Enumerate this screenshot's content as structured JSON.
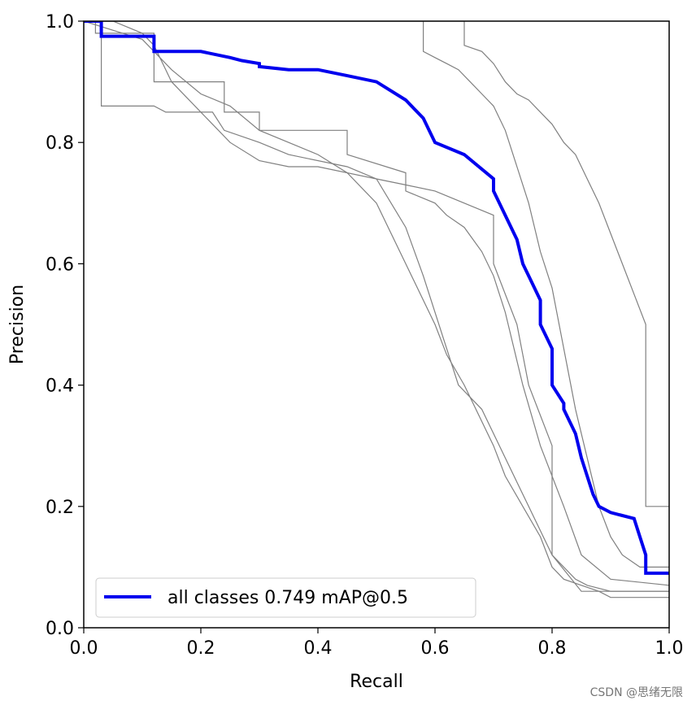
{
  "chart_data": {
    "type": "line",
    "xlabel": "Recall",
    "ylabel": "Precision",
    "xlim": [
      0.0,
      1.0
    ],
    "ylim": [
      0.0,
      1.0
    ],
    "x_ticks": [
      "0.0",
      "0.2",
      "0.4",
      "0.6",
      "0.8",
      "1.0"
    ],
    "y_ticks": [
      "0.0",
      "0.2",
      "0.4",
      "0.6",
      "0.8",
      "1.0"
    ],
    "grid": false,
    "legend_position": "bottom-left",
    "series": [
      {
        "name": "",
        "color": "#808080",
        "x": [
          0.0,
          0.02,
          0.02,
          0.12,
          0.12,
          0.24,
          0.24,
          0.3,
          0.3,
          0.45,
          0.45,
          0.55,
          0.55,
          0.6,
          0.62,
          0.65,
          0.68,
          0.7,
          0.72,
          0.75,
          0.78,
          0.82,
          0.85,
          0.9,
          1.0
        ],
        "y": [
          1.0,
          1.0,
          0.98,
          0.98,
          0.9,
          0.9,
          0.85,
          0.85,
          0.82,
          0.82,
          0.78,
          0.75,
          0.72,
          0.7,
          0.68,
          0.66,
          0.62,
          0.58,
          0.52,
          0.4,
          0.3,
          0.2,
          0.12,
          0.08,
          0.07
        ]
      },
      {
        "name": "",
        "color": "#808080",
        "x": [
          0.0,
          0.03,
          0.03,
          0.12,
          0.14,
          0.22,
          0.24,
          0.3,
          0.35,
          0.45,
          0.5,
          0.55,
          0.6,
          0.65,
          0.7,
          0.7,
          0.74,
          0.76,
          0.8,
          0.8,
          0.85,
          1.0
        ],
        "y": [
          1.0,
          1.0,
          0.86,
          0.86,
          0.85,
          0.85,
          0.82,
          0.8,
          0.78,
          0.76,
          0.74,
          0.73,
          0.72,
          0.7,
          0.68,
          0.6,
          0.5,
          0.4,
          0.3,
          0.12,
          0.06,
          0.06
        ]
      },
      {
        "name": "",
        "color": "#808080",
        "x": [
          0.0,
          0.05,
          0.1,
          0.12,
          0.15,
          0.2,
          0.25,
          0.3,
          0.35,
          0.4,
          0.5,
          0.55,
          0.58,
          0.6,
          0.62,
          0.64,
          0.68,
          0.7,
          0.72,
          0.74,
          0.76,
          0.78,
          0.8,
          0.82,
          0.84,
          0.86,
          0.9,
          1.0
        ],
        "y": [
          1.0,
          1.0,
          0.98,
          0.96,
          0.9,
          0.85,
          0.8,
          0.77,
          0.76,
          0.76,
          0.74,
          0.66,
          0.58,
          0.52,
          0.46,
          0.4,
          0.36,
          0.32,
          0.28,
          0.24,
          0.2,
          0.16,
          0.12,
          0.1,
          0.08,
          0.07,
          0.06,
          0.06
        ]
      },
      {
        "name": "",
        "color": "#808080",
        "x": [
          0.0,
          0.1,
          0.15,
          0.2,
          0.25,
          0.3,
          0.35,
          0.4,
          0.45,
          0.5,
          0.55,
          0.6,
          0.62,
          0.65,
          0.7,
          0.72,
          0.75,
          0.78,
          0.8,
          0.82,
          0.85,
          0.88,
          0.9,
          1.0
        ],
        "y": [
          1.0,
          0.97,
          0.92,
          0.88,
          0.86,
          0.82,
          0.8,
          0.78,
          0.75,
          0.7,
          0.6,
          0.5,
          0.45,
          0.4,
          0.3,
          0.25,
          0.2,
          0.15,
          0.1,
          0.08,
          0.07,
          0.06,
          0.05,
          0.05
        ]
      },
      {
        "name": "",
        "color": "#808080",
        "x": [
          0.0,
          0.58,
          0.58,
          0.6,
          0.62,
          0.64,
          0.66,
          0.68,
          0.7,
          0.72,
          0.74,
          0.76,
          0.78,
          0.8,
          0.82,
          0.84,
          0.86,
          0.88,
          0.9,
          0.92,
          0.95,
          0.97,
          1.0
        ],
        "y": [
          1.0,
          1.0,
          0.95,
          0.94,
          0.93,
          0.92,
          0.9,
          0.88,
          0.86,
          0.82,
          0.76,
          0.7,
          0.62,
          0.56,
          0.46,
          0.36,
          0.28,
          0.2,
          0.15,
          0.12,
          0.1,
          0.1,
          0.1
        ]
      },
      {
        "name": "",
        "color": "#808080",
        "x": [
          0.0,
          0.65,
          0.65,
          0.68,
          0.7,
          0.72,
          0.74,
          0.76,
          0.78,
          0.8,
          0.82,
          0.84,
          0.86,
          0.88,
          0.9,
          0.92,
          0.94,
          0.96,
          0.96,
          1.0
        ],
        "y": [
          1.0,
          1.0,
          0.96,
          0.95,
          0.93,
          0.9,
          0.88,
          0.87,
          0.85,
          0.83,
          0.8,
          0.78,
          0.74,
          0.7,
          0.65,
          0.6,
          0.55,
          0.5,
          0.2,
          0.2
        ]
      },
      {
        "name": "all classes 0.749 mAP@0.5",
        "color": "#0000ee",
        "x": [
          0.0,
          0.03,
          0.03,
          0.12,
          0.12,
          0.2,
          0.25,
          0.27,
          0.3,
          0.3,
          0.35,
          0.4,
          0.45,
          0.5,
          0.55,
          0.58,
          0.6,
          0.65,
          0.7,
          0.7,
          0.72,
          0.74,
          0.75,
          0.76,
          0.78,
          0.78,
          0.8,
          0.8,
          0.82,
          0.82,
          0.84,
          0.85,
          0.86,
          0.87,
          0.88,
          0.9,
          0.94,
          0.95,
          0.96,
          0.96,
          1.0
        ],
        "y": [
          1.0,
          1.0,
          0.975,
          0.975,
          0.95,
          0.95,
          0.94,
          0.935,
          0.93,
          0.925,
          0.92,
          0.92,
          0.91,
          0.9,
          0.87,
          0.84,
          0.8,
          0.78,
          0.74,
          0.72,
          0.68,
          0.64,
          0.6,
          0.58,
          0.54,
          0.5,
          0.46,
          0.4,
          0.37,
          0.36,
          0.32,
          0.28,
          0.25,
          0.22,
          0.2,
          0.19,
          0.18,
          0.15,
          0.12,
          0.09,
          0.09
        ]
      }
    ],
    "legend": {
      "label": "all classes 0.749 mAP@0.5",
      "color": "#0000ee"
    }
  },
  "watermark": "CSDN @思绪无限"
}
